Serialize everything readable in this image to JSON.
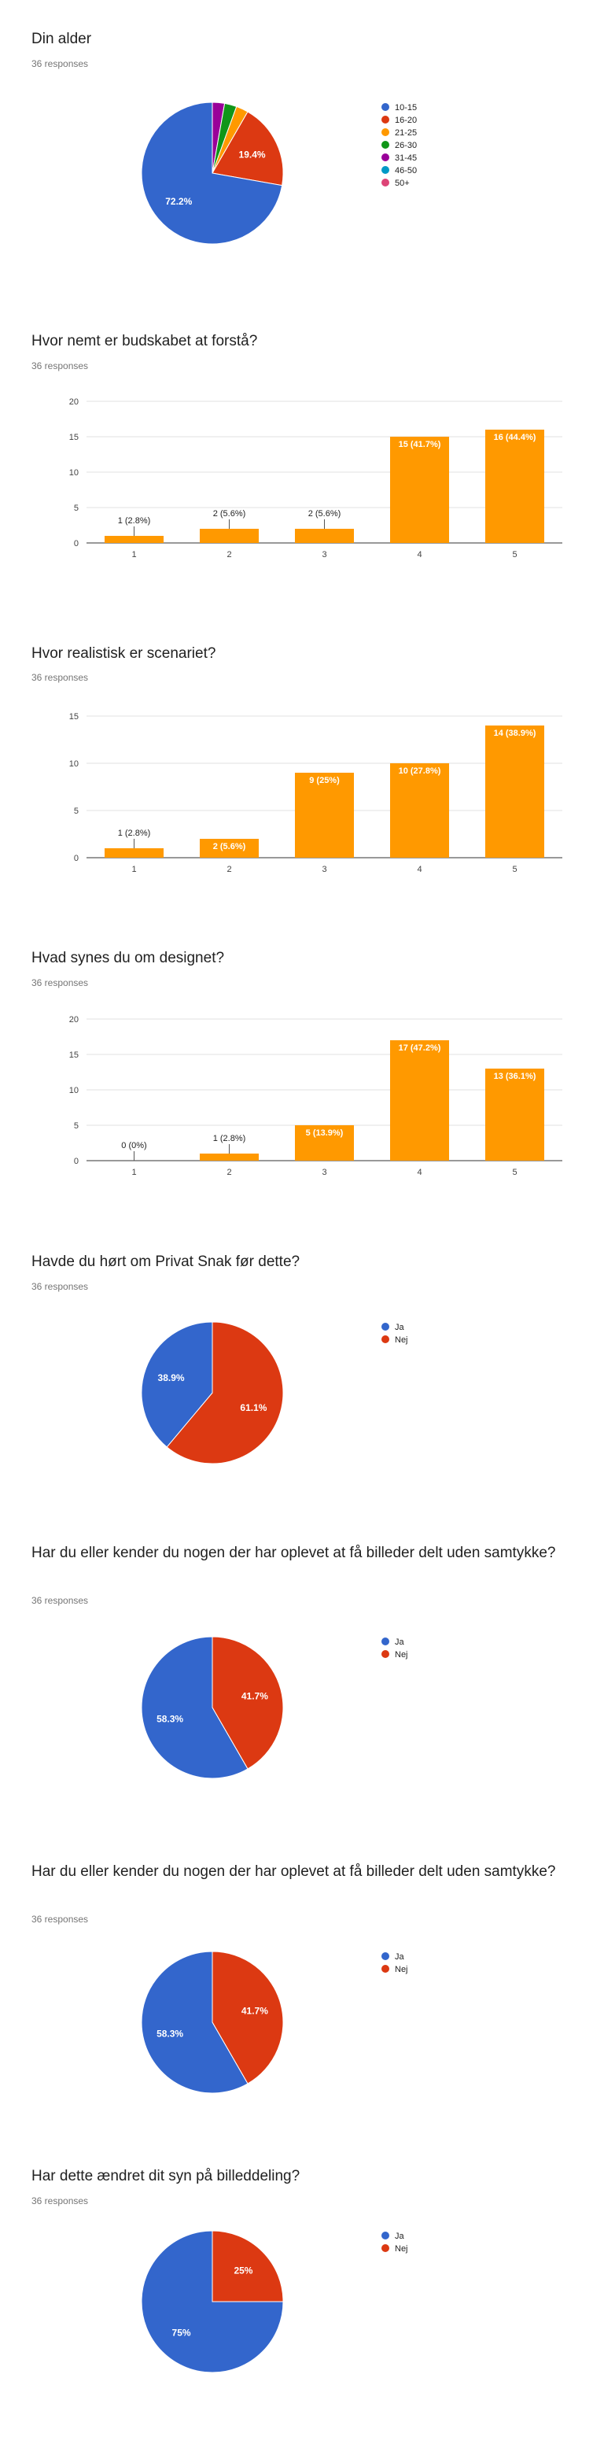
{
  "colors": {
    "palette": [
      "#3366cc",
      "#dc3912",
      "#ff9900",
      "#109618",
      "#990099",
      "#0099c6",
      "#dd4477"
    ],
    "bar": "#ff9900"
  },
  "chart_data": [
    {
      "type": "pie",
      "title": "Din alder",
      "subtitle": "36 responses",
      "categories": [
        "10-15",
        "16-20",
        "21-25",
        "26-30",
        "31-45",
        "46-50",
        "50+"
      ],
      "values": [
        26,
        7,
        1,
        1,
        1,
        0,
        0
      ],
      "slice_labels": [
        "72.2%",
        "19.4%",
        "",
        "",
        "",
        "",
        ""
      ],
      "legend": "right"
    },
    {
      "type": "bar",
      "title": "Hvor nemt er budskabet at forstå?",
      "subtitle": "36 responses",
      "categories": [
        "1",
        "2",
        "3",
        "4",
        "5"
      ],
      "values": [
        1,
        2,
        2,
        15,
        16
      ],
      "data_labels": [
        "1 (2.8%)",
        "2 (5.6%)",
        "2 (5.6%)",
        "15 (41.7%)",
        "16 (44.4%)"
      ],
      "ylim": [
        0,
        20
      ],
      "yticks": [
        "0",
        "5",
        "10",
        "15",
        "20"
      ],
      "grid": true
    },
    {
      "type": "bar",
      "title": "Hvor realistisk er scenariet?",
      "subtitle": "36 responses",
      "categories": [
        "1",
        "2",
        "3",
        "4",
        "5"
      ],
      "values": [
        1,
        2,
        9,
        10,
        14
      ],
      "data_labels": [
        "1 (2.8%)",
        "2 (5.6%)",
        "9 (25%)",
        "10 (27.8%)",
        "14 (38.9%)"
      ],
      "ylim": [
        0,
        15
      ],
      "yticks": [
        "0",
        "5",
        "10",
        "15"
      ],
      "grid": true
    },
    {
      "type": "bar",
      "title": "Hvad synes du om designet?",
      "subtitle": "36 responses",
      "categories": [
        "1",
        "2",
        "3",
        "4",
        "5"
      ],
      "values": [
        0,
        1,
        5,
        17,
        13
      ],
      "data_labels": [
        "0 (0%)",
        "1 (2.8%)",
        "5 (13.9%)",
        "17 (47.2%)",
        "13 (36.1%)"
      ],
      "ylim": [
        0,
        20
      ],
      "yticks": [
        "0",
        "5",
        "10",
        "15",
        "20"
      ],
      "grid": true
    },
    {
      "type": "pie",
      "title": "Havde du hørt om Privat Snak før dette?",
      "subtitle": "36 responses",
      "categories": [
        "Ja",
        "Nej"
      ],
      "values": [
        14,
        22
      ],
      "slice_labels": [
        "38.9%",
        "61.1%"
      ],
      "legend": "right"
    },
    {
      "type": "pie",
      "title": "Har du eller kender du nogen der har oplevet at få billeder delt uden samtykke?",
      "subtitle": "36 responses",
      "categories": [
        "Ja",
        "Nej"
      ],
      "values": [
        21,
        15
      ],
      "slice_labels": [
        "58.3%",
        "41.7%"
      ],
      "legend": "right"
    },
    {
      "type": "pie",
      "title": "Har du eller kender du nogen der har oplevet at få billeder delt uden samtykke?",
      "subtitle": "36 responses",
      "categories": [
        "Ja",
        "Nej"
      ],
      "values": [
        21,
        15
      ],
      "slice_labels": [
        "58.3%",
        "41.7%"
      ],
      "legend": "right"
    },
    {
      "type": "pie",
      "title": "Har dette ændret dit syn på billeddeling?",
      "subtitle": "36 responses",
      "categories": [
        "Ja",
        "Nej"
      ],
      "values": [
        27,
        9
      ],
      "slice_labels": [
        "75%",
        "25%"
      ],
      "legend": "right"
    }
  ]
}
